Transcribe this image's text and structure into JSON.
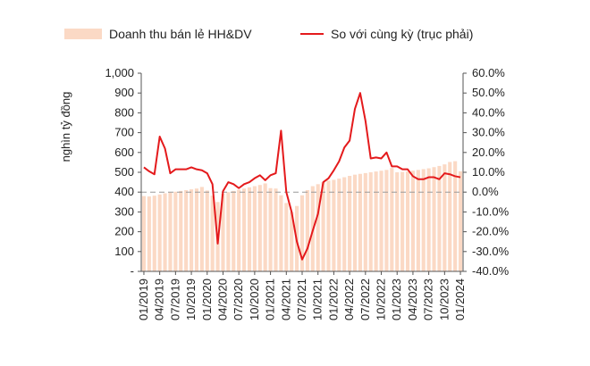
{
  "chart_data": {
    "type": "bar",
    "title": "",
    "ylabel": "nghìn tỷ đồng",
    "legend": {
      "placement": "top",
      "items": [
        {
          "label": "Doanh thu bán lẻ HH&DV",
          "kind": "bar"
        },
        {
          "label": "So với cùng kỳ (trục phải)",
          "kind": "line"
        }
      ]
    },
    "y_left": {
      "range": [
        0,
        1000
      ],
      "ticks": [
        0,
        100,
        200,
        300,
        400,
        500,
        600,
        700,
        800,
        900,
        1000
      ],
      "tick_labels": [
        "-",
        "100",
        "200",
        "300",
        "400",
        "500",
        "600",
        "700",
        "800",
        "900",
        "1,000"
      ]
    },
    "y_right": {
      "range": [
        -40,
        60
      ],
      "ticks": [
        -40,
        -30,
        -20,
        -10,
        0,
        10,
        20,
        30,
        40,
        50,
        60
      ],
      "tick_labels": [
        "-40.0%",
        "-30.0%",
        "-20.0%",
        "-10.0%",
        "0.0%",
        "10.0%",
        "20.0%",
        "30.0%",
        "40.0%",
        "50.0%",
        "60.0%"
      ]
    },
    "x_tick_labels": [
      "01/2019",
      "04/2019",
      "07/2019",
      "10/2019",
      "01/2020",
      "04/2020",
      "07/2020",
      "10/2020",
      "01/2021",
      "04/2021",
      "07/2021",
      "10/2021",
      "01/2022",
      "04/2022",
      "07/2022",
      "10/2022",
      "01/2023",
      "04/2023",
      "07/2023",
      "10/2023",
      "01/2024"
    ],
    "colors": {
      "bars": "#fbd9c5",
      "line": "#e41a1c",
      "zero_line": "#999999"
    },
    "series": [
      {
        "name": "Doanh thu bán lẻ HH&DV",
        "axis": "left",
        "values": [
          380,
          378,
          382,
          388,
          394,
          398,
          402,
          406,
          410,
          414,
          418,
          426,
          408,
          382,
          350,
          392,
          400,
          406,
          412,
          418,
          424,
          430,
          436,
          444,
          420,
          418,
          384,
          345,
          300,
          330,
          384,
          410,
          430,
          440,
          450,
          458,
          462,
          468,
          475,
          482,
          488,
          492,
          496,
          500,
          504,
          508,
          512,
          522,
          500,
          502,
          504,
          508,
          512,
          516,
          520,
          526,
          532,
          540,
          552,
          556,
          505
        ]
      },
      {
        "name": "So với cùng kỳ (trục phải)",
        "axis": "right",
        "values": [
          12.5,
          10.5,
          9.0,
          28.0,
          22.0,
          9.5,
          11.5,
          11.5,
          11.5,
          12.5,
          11.5,
          11.0,
          9.5,
          4.0,
          -26.0,
          0.5,
          5.0,
          4.0,
          2.0,
          4.0,
          5.0,
          7.0,
          8.5,
          6.0,
          8.5,
          9.5,
          31.0,
          0.0,
          -10.0,
          -25.0,
          -34.0,
          -28.5,
          -19.5,
          -11.0,
          5.0,
          7.0,
          11.0,
          15.5,
          22.5,
          26.0,
          42.0,
          50.0,
          36.0,
          17.0,
          17.5,
          17.0,
          20.0,
          13.0,
          13.0,
          11.5,
          11.5,
          8.0,
          6.5,
          6.5,
          7.5,
          7.5,
          6.5,
          9.5,
          9.0,
          8.0,
          7.5
        ]
      }
    ],
    "grid": false
  }
}
